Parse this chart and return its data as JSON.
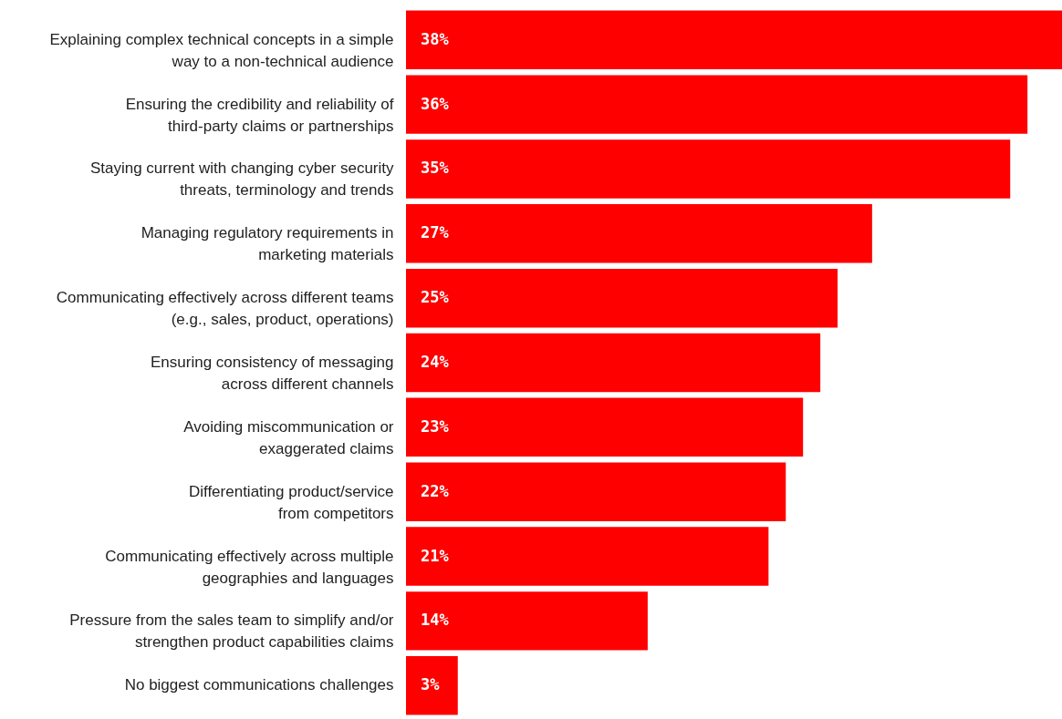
{
  "chart_data": {
    "type": "bar",
    "orientation": "horizontal",
    "categories": [
      "Explaining complex technical concepts in a simple\nway to a non-technical audience",
      "Ensuring the credibility and reliability of\nthird-party claims or partnerships",
      "Staying current with changing cyber security\nthreats, terminology and trends",
      "Managing regulatory requirements in\nmarketing materials",
      "Communicating effectively across different teams\n(e.g., sales, product, operations)",
      "Ensuring consistency of messaging\nacross different channels",
      "Avoiding miscommunication or\nexaggerated claims",
      "Differentiating product/service\nfrom competitors",
      "Communicating effectively across multiple\ngeographies and languages",
      "Pressure from the sales team to simplify and/or\nstrengthen product capabilities claims",
      "No biggest communications challenges"
    ],
    "values": [
      38,
      36,
      35,
      27,
      25,
      24,
      23,
      22,
      21,
      14,
      3
    ],
    "value_labels": [
      "38%",
      "36%",
      "35%",
      "27%",
      "25%",
      "24%",
      "23%",
      "22%",
      "21%",
      "14%",
      "3%"
    ],
    "color": "#ff0000"
  }
}
